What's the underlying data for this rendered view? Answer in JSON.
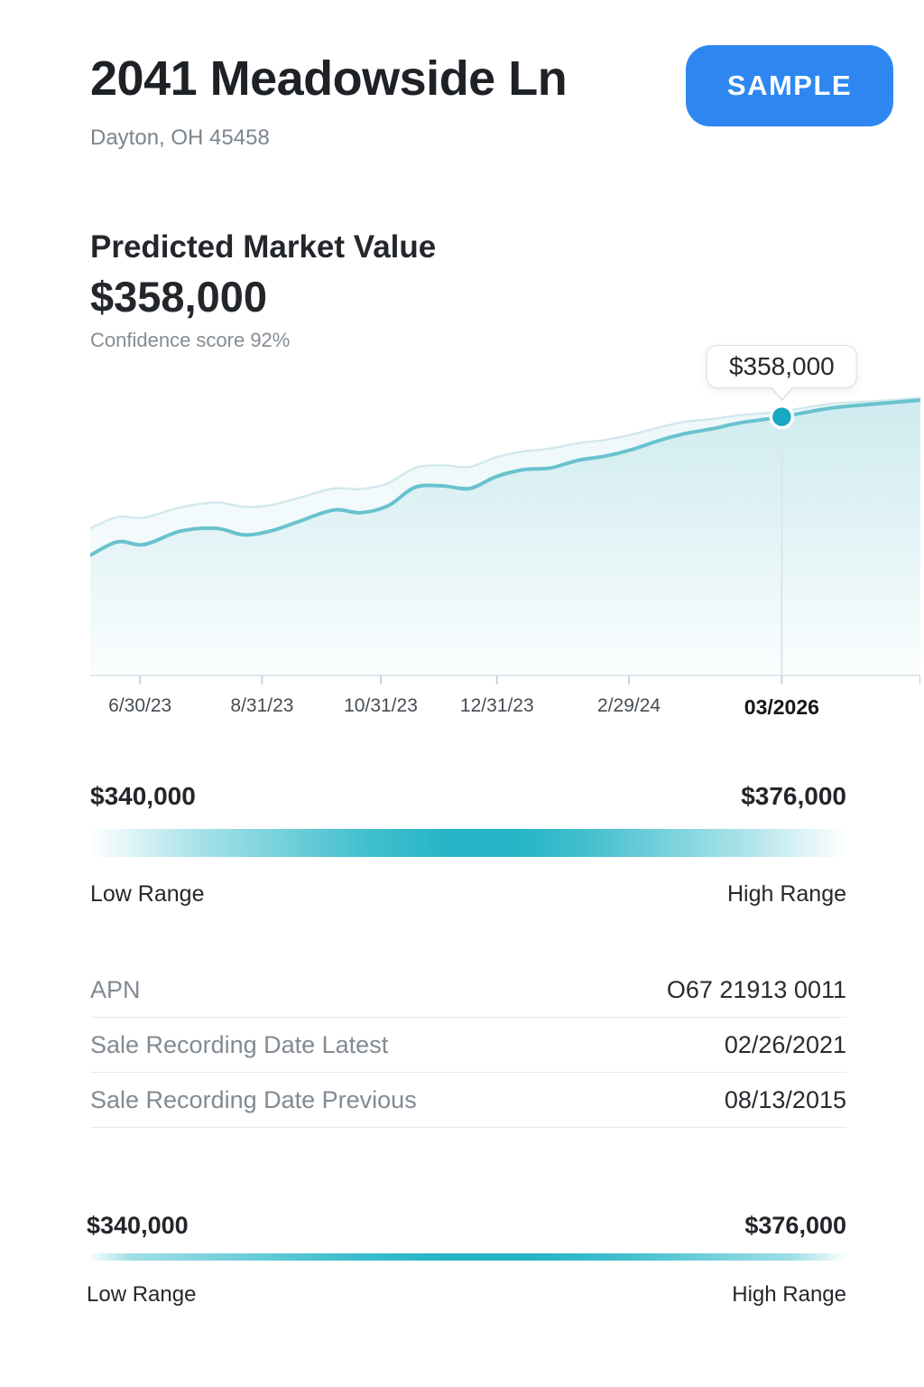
{
  "header": {
    "title": "2041 Meadowside Ln",
    "subtitle": "Dayton, OH 45458",
    "badge_label": "SAMPLE",
    "badge_color": "#2e87f0"
  },
  "prediction": {
    "heading": "Predicted Market Value",
    "value": "$358,000",
    "confidence": "Confidence score 92%"
  },
  "chart_data": {
    "type": "area",
    "title": "Predicted market value over time",
    "xlabel": "",
    "ylabel": "",
    "ylim": [
      310000,
      370000
    ],
    "grid": false,
    "legend": "none",
    "x_ticks": [
      {
        "label": "6/30/23",
        "f": 0.06
      },
      {
        "label": "8/31/23",
        "f": 0.207
      },
      {
        "label": "10/31/23",
        "f": 0.35
      },
      {
        "label": "12/31/23",
        "f": 0.49
      },
      {
        "label": "2/29/24",
        "f": 0.649
      },
      {
        "label": "03/2026",
        "f": 0.833,
        "bold": true
      },
      {
        "label": "",
        "f": 1.0
      }
    ],
    "f": [
      0,
      0.033,
      0.065,
      0.109,
      0.152,
      0.185,
      0.217,
      0.25,
      0.293,
      0.326,
      0.359,
      0.391,
      0.424,
      0.457,
      0.489,
      0.522,
      0.554,
      0.587,
      0.62,
      0.652,
      0.685,
      0.717,
      0.75,
      0.783,
      0.833,
      0.891,
      0.946,
      1.0
    ],
    "series": [
      {
        "name": "predicted_value",
        "color": "#69c2ce",
        "values": [
          332300,
          334800,
          334300,
          336800,
          337300,
          336100,
          336800,
          338500,
          340700,
          340200,
          341500,
          344900,
          345200,
          344700,
          346900,
          348200,
          348500,
          349900,
          350700,
          351900,
          353600,
          354900,
          355800,
          356900,
          358000,
          359600,
          360400,
          361100
        ]
      },
      {
        "name": "upper_band",
        "color": "#d2e9ec",
        "values": [
          337300,
          339400,
          339300,
          341200,
          342100,
          341300,
          341600,
          342900,
          344700,
          344600,
          345700,
          348500,
          349000,
          348700,
          350500,
          351600,
          352100,
          353100,
          353700,
          354700,
          356000,
          357100,
          357600,
          358300,
          359000,
          360400,
          360900,
          361500
        ]
      }
    ],
    "marker": {
      "f": 0.833,
      "value": 358000,
      "tooltip": "$358,000",
      "dot_color": "#17a8c2",
      "x_label": "03/2026"
    }
  },
  "range_top": {
    "low_value": "$340,000",
    "high_value": "$376,000",
    "low_label": "Low Range",
    "high_label": "High Range",
    "bar_color": "#24b4c6"
  },
  "details_table": {
    "rows": [
      {
        "label": "APN",
        "value": "O67 21913 0011"
      },
      {
        "label": "Sale Recording Date Latest",
        "value": "02/26/2021"
      },
      {
        "label": "Sale Recording Date Previous",
        "value": "08/13/2015"
      }
    ]
  },
  "range_bottom": {
    "low_value": "$340,000",
    "high_value": "$376,000",
    "low_label": "Low Range",
    "high_label": "High Range"
  },
  "theme": {
    "accent_teal": "#24b4c6",
    "line_teal": "#69c2ce",
    "dot_teal": "#17a8c2",
    "badge_blue": "#2e87f0",
    "text_dark": "#22262b",
    "text_gray": "#828a92"
  }
}
